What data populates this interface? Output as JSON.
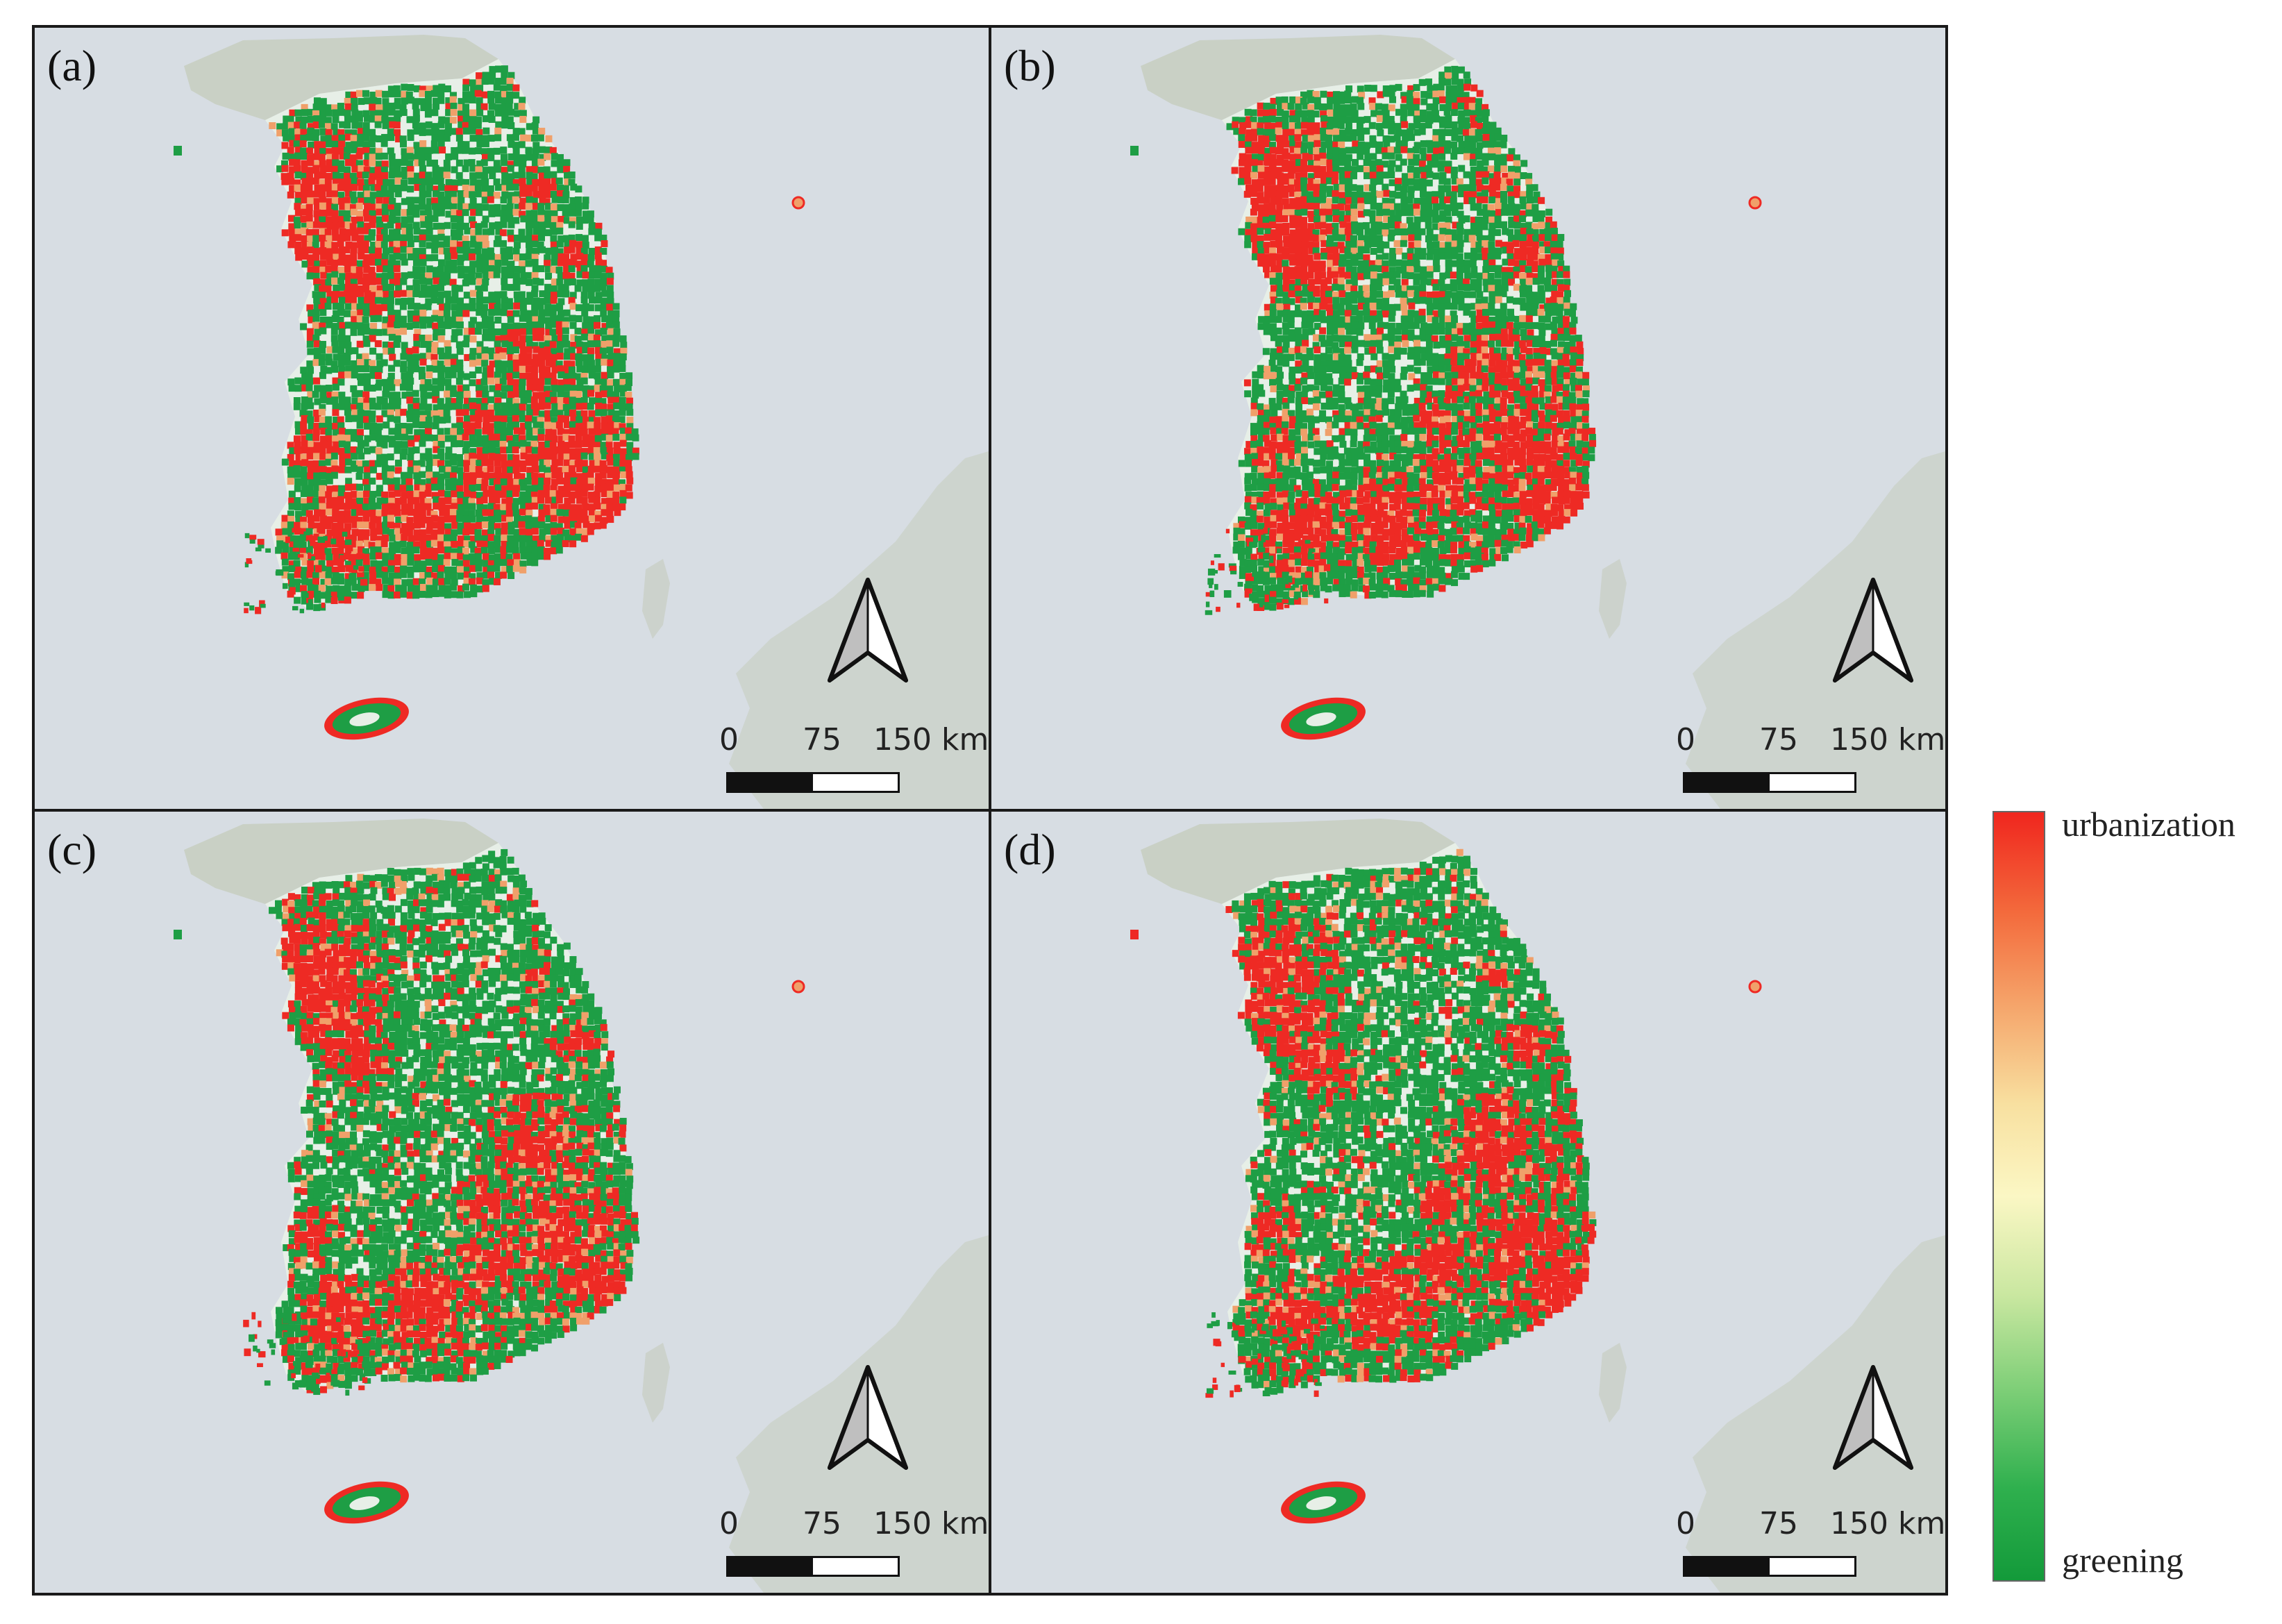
{
  "panels": [
    {
      "label": "(a)",
      "variant": 0
    },
    {
      "label": "(b)",
      "variant": 1
    },
    {
      "label": "(c)",
      "variant": 2
    },
    {
      "label": "(d)",
      "variant": 3
    }
  ],
  "scale_bar": {
    "ticks": [
      "0",
      "75",
      "150 km"
    ]
  },
  "north_arrow": {
    "icon": "north-arrow-icon"
  },
  "legend": {
    "top_label": "urbanization",
    "bottom_label": "greening",
    "gradient_colors": [
      "#f0261e",
      "#f36a3c",
      "#f5a46a",
      "#f8e0a0",
      "#fbf7c4",
      "#c9e7a0",
      "#7fcf78",
      "#2fb04e",
      "#139a3a"
    ]
  },
  "colors": {
    "sea": "#d7dde3",
    "background_land": "#c9d0c5",
    "urban": "#ee2a24",
    "green": "#1e9e45",
    "mixed": "#f0a06a",
    "pale": "#e7efe7"
  }
}
